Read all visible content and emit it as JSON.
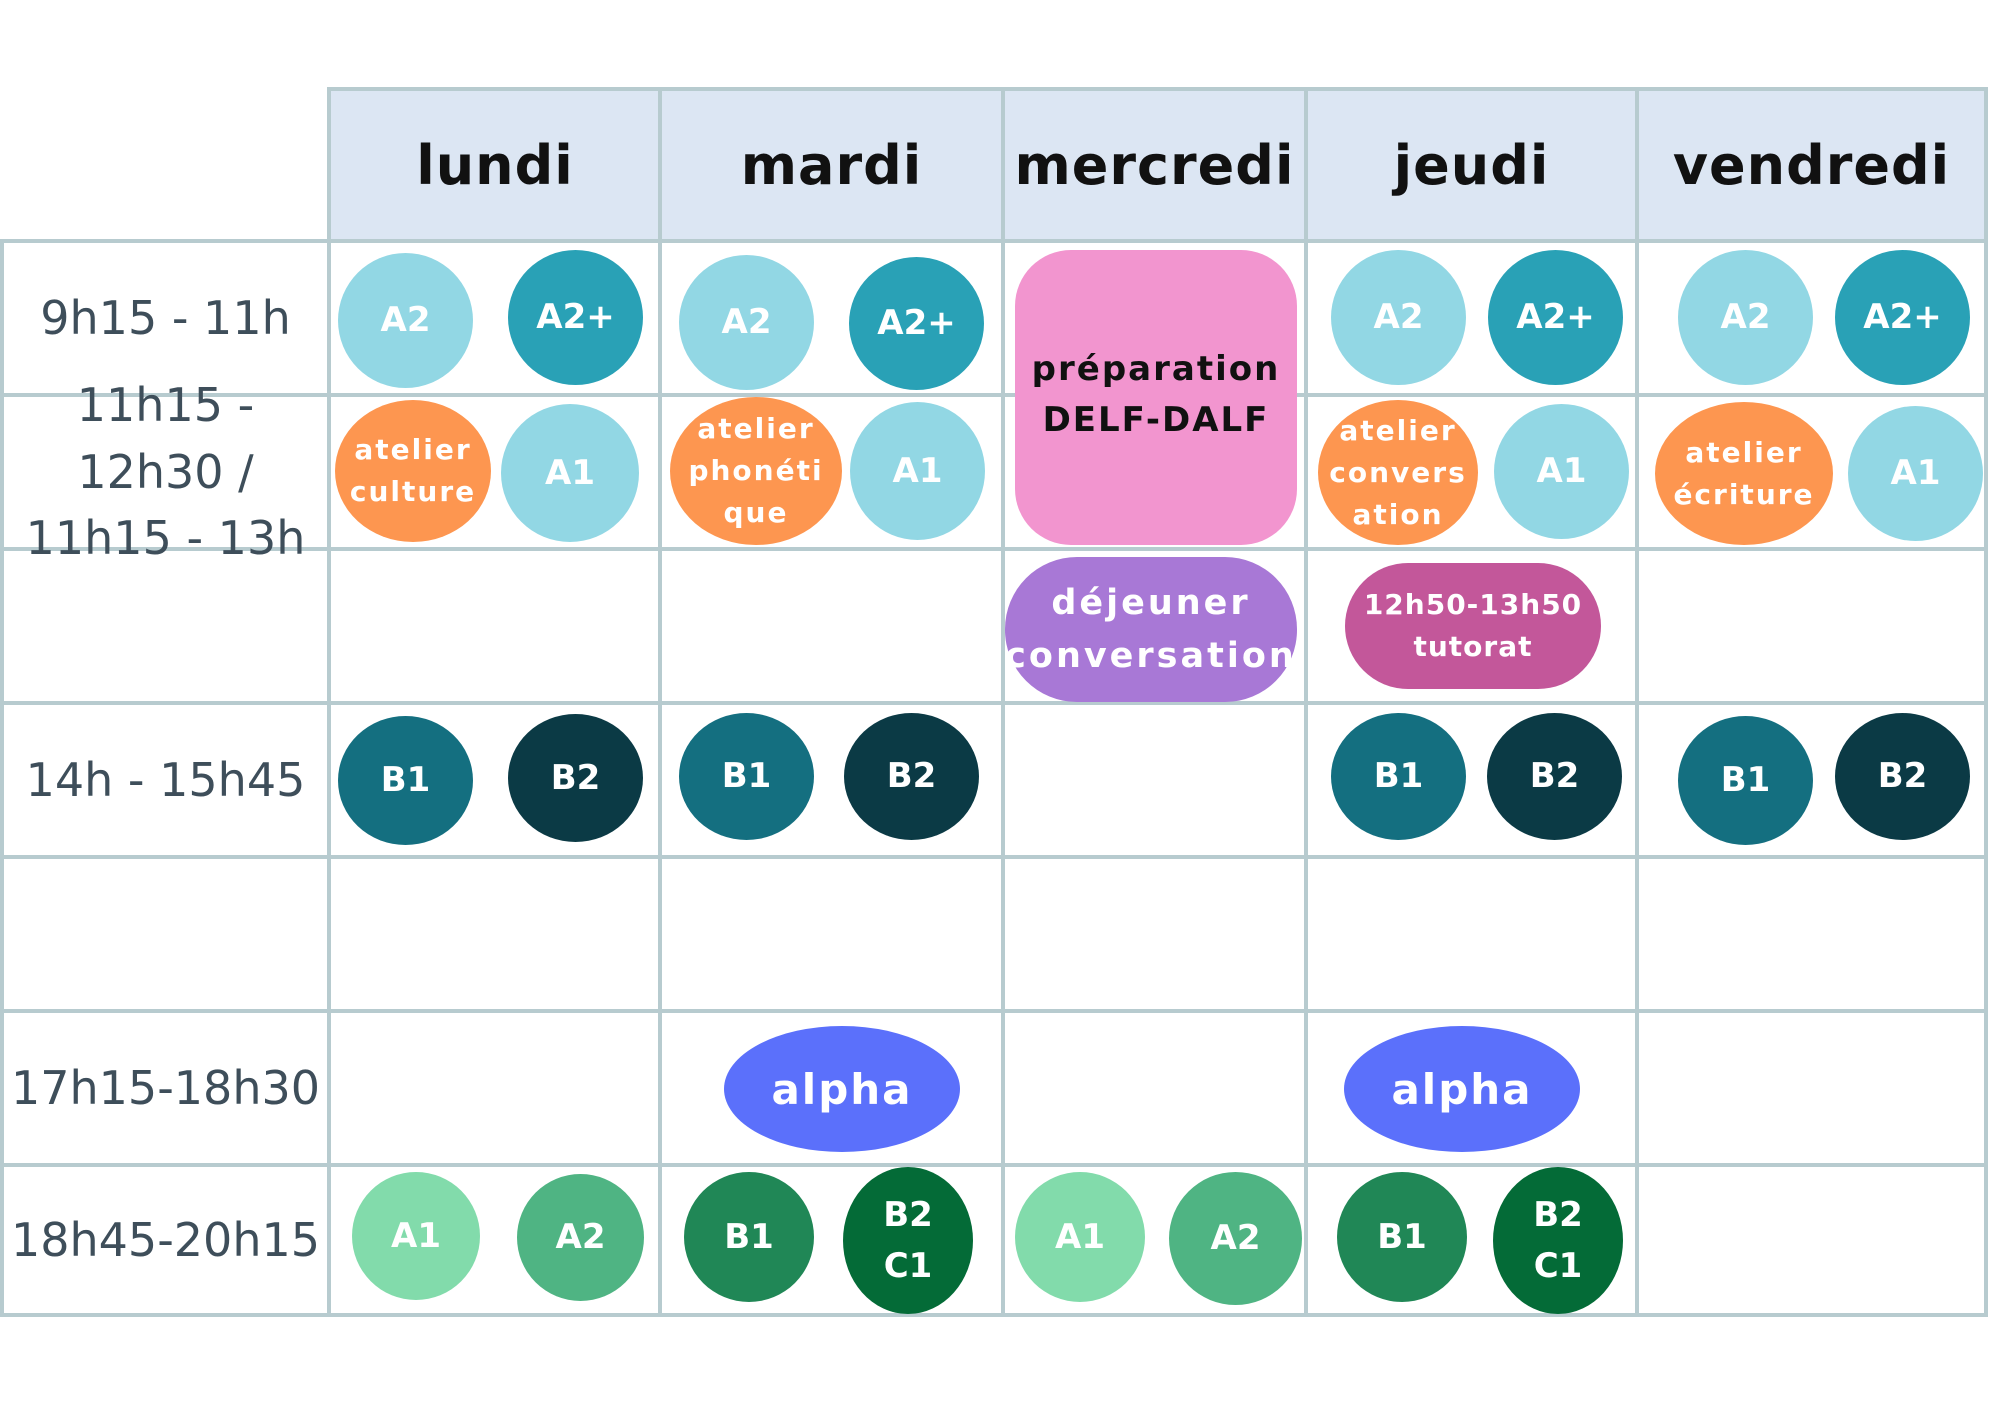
{
  "days": [
    "lundi",
    "mardi",
    "mercredi",
    "jeudi",
    "vendredi"
  ],
  "times": [
    "9h15 - 11h",
    "11h15 - 12h30 /\n11h15 - 13h",
    "",
    "14h - 15h45",
    "",
    "17h15-18h30",
    "18h45-20h15"
  ],
  "colors": {
    "light_teal": "#92d7e4",
    "teal": "#29a1b6",
    "dark_teal": "#146f80",
    "navy": "#0b3a45",
    "orange": "#fd9650",
    "pink": "#f295cf",
    "purple": "#a878d6",
    "magenta": "#c3579a",
    "blue": "#5b70fb",
    "mint": "#82dbab",
    "green": "#4fb483",
    "dark_green": "#208756",
    "forest": "#046b37",
    "grid": "#b7cbcf",
    "header_bg": "#dce6f3"
  },
  "slots": {
    "mon_am1": "A2",
    "mon_am2": "A2+",
    "mon_mid1": "atelier\nculture",
    "mon_mid2": "A1",
    "mon_pm1": "B1",
    "mon_pm2": "B2",
    "mon_ev1": "A1",
    "mon_ev2": "A2",
    "tue_am1": "A2",
    "tue_am2": "A2+",
    "tue_mid1": "atelier\nphonéti\nque",
    "tue_mid2": "A1",
    "tue_pm1": "B1",
    "tue_pm2": "B2",
    "tue_alpha": "alpha",
    "tue_ev1": "B1",
    "tue_ev2": "B2\nC1",
    "wed_prep": "préparation\nDELF-DALF",
    "wed_lunch": "déjeuner\nconversation",
    "wed_ev1": "A1",
    "wed_ev2": "A2",
    "thu_am1": "A2",
    "thu_am2": "A2+",
    "thu_mid1": "atelier\nconvers\nation",
    "thu_mid2": "A1",
    "thu_tutor": "12h50-13h50\ntutorat",
    "thu_pm1": "B1",
    "thu_pm2": "B2",
    "thu_alpha": "alpha",
    "thu_ev1": "B1",
    "thu_ev2": "B2\nC1",
    "fri_am1": "A2",
    "fri_am2": "A2+",
    "fri_mid1": "atelier\nécriture",
    "fri_mid2": "A1",
    "fri_pm1": "B1",
    "fri_pm2": "B2"
  }
}
